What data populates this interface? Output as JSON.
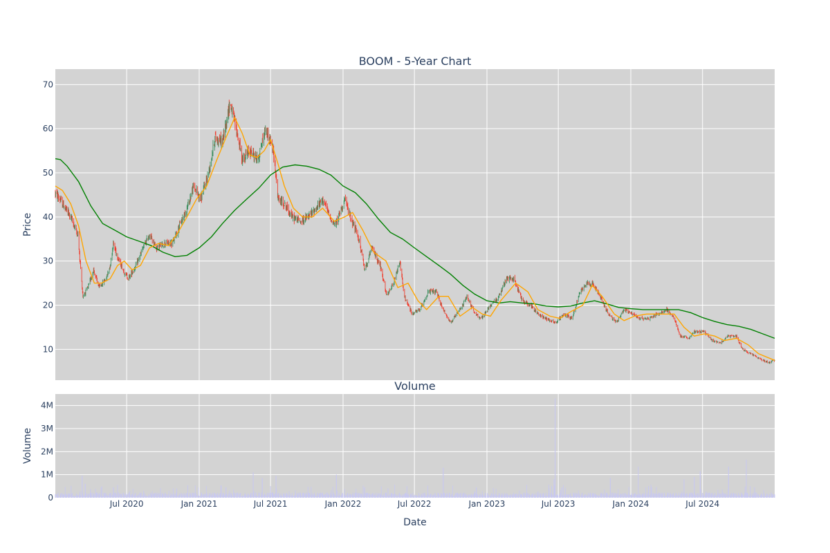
{
  "chart_data": [
    {
      "type": "candlestick",
      "title": "BOOM - 5-Year Chart",
      "ylabel": "Price",
      "xlabel": "",
      "x_range": [
        "2020-01-02",
        "2024-12-31"
      ],
      "ylim": [
        3,
        73.5
      ],
      "y_ticks": [
        10,
        20,
        30,
        40,
        50,
        60,
        70
      ],
      "grid": true,
      "colors": {
        "background": "#d3d3d3",
        "grid": "#ffffff",
        "up": "#3d8f5f",
        "down": "#ef3b2c",
        "ma_short": "#ffa500",
        "ma_long": "#008000"
      },
      "price_anchors": [
        [
          "2020-01-02",
          45.5
        ],
        [
          "2020-01-20",
          43
        ],
        [
          "2020-02-10",
          40
        ],
        [
          "2020-02-28",
          36
        ],
        [
          "2020-03-12",
          22
        ],
        [
          "2020-03-25",
          24
        ],
        [
          "2020-04-08",
          28
        ],
        [
          "2020-04-22",
          24
        ],
        [
          "2020-05-10",
          26
        ],
        [
          "2020-05-20",
          29
        ],
        [
          "2020-05-28",
          34
        ],
        [
          "2020-06-08",
          31
        ],
        [
          "2020-06-22",
          28
        ],
        [
          "2020-07-05",
          26
        ],
        [
          "2020-07-25",
          29
        ],
        [
          "2020-08-12",
          33
        ],
        [
          "2020-08-28",
          36
        ],
        [
          "2020-09-15",
          33
        ],
        [
          "2020-10-05",
          34
        ],
        [
          "2020-10-25",
          34
        ],
        [
          "2020-11-12",
          38
        ],
        [
          "2020-12-01",
          42
        ],
        [
          "2020-12-18",
          47
        ],
        [
          "2021-01-05",
          44
        ],
        [
          "2021-01-25",
          50
        ],
        [
          "2021-02-10",
          58
        ],
        [
          "2021-03-01",
          57
        ],
        [
          "2021-03-20",
          66
        ],
        [
          "2021-04-05",
          60
        ],
        [
          "2021-04-20",
          53
        ],
        [
          "2021-05-10",
          55
        ],
        [
          "2021-05-30",
          53
        ],
        [
          "2021-06-18",
          60
        ],
        [
          "2021-07-01",
          57
        ],
        [
          "2021-07-10",
          54
        ],
        [
          "2021-07-20",
          44
        ],
        [
          "2021-08-05",
          43
        ],
        [
          "2021-08-25",
          40
        ],
        [
          "2021-09-15",
          39
        ],
        [
          "2021-10-05",
          40
        ],
        [
          "2021-10-25",
          42
        ],
        [
          "2021-11-12",
          44
        ],
        [
          "2021-11-28",
          40
        ],
        [
          "2021-12-12",
          38
        ],
        [
          "2022-01-05",
          44
        ],
        [
          "2022-01-20",
          40
        ],
        [
          "2022-02-10",
          35
        ],
        [
          "2022-02-25",
          28
        ],
        [
          "2022-03-15",
          33
        ],
        [
          "2022-04-05",
          29
        ],
        [
          "2022-04-22",
          22
        ],
        [
          "2022-05-10",
          25
        ],
        [
          "2022-05-25",
          30
        ],
        [
          "2022-06-05",
          22
        ],
        [
          "2022-06-25",
          18
        ],
        [
          "2022-07-15",
          19
        ],
        [
          "2022-08-05",
          23
        ],
        [
          "2022-08-25",
          23
        ],
        [
          "2022-09-12",
          19
        ],
        [
          "2022-10-01",
          16
        ],
        [
          "2022-10-25",
          19
        ],
        [
          "2022-11-12",
          22
        ],
        [
          "2022-12-01",
          18
        ],
        [
          "2022-12-20",
          17
        ],
        [
          "2023-01-10",
          20
        ],
        [
          "2023-02-01",
          22
        ],
        [
          "2023-02-20",
          26
        ],
        [
          "2023-03-10",
          26
        ],
        [
          "2023-04-01",
          21
        ],
        [
          "2023-04-22",
          20
        ],
        [
          "2023-05-10",
          18
        ],
        [
          "2023-06-01",
          17
        ],
        [
          "2023-06-25",
          16
        ],
        [
          "2023-07-15",
          18
        ],
        [
          "2023-08-05",
          17
        ],
        [
          "2023-08-25",
          23
        ],
        [
          "2023-09-10",
          25
        ],
        [
          "2023-09-25",
          25
        ],
        [
          "2023-10-15",
          22
        ],
        [
          "2023-11-05",
          18
        ],
        [
          "2023-11-25",
          16
        ],
        [
          "2023-12-15",
          19
        ],
        [
          "2024-01-05",
          18
        ],
        [
          "2024-01-25",
          17
        ],
        [
          "2024-02-15",
          17
        ],
        [
          "2024-03-10",
          18
        ],
        [
          "2024-04-01",
          19
        ],
        [
          "2024-04-20",
          17
        ],
        [
          "2024-05-05",
          13
        ],
        [
          "2024-05-28",
          12.5
        ],
        [
          "2024-06-10",
          14
        ],
        [
          "2024-07-05",
          14
        ],
        [
          "2024-07-25",
          12
        ],
        [
          "2024-08-15",
          11.5
        ],
        [
          "2024-09-05",
          13
        ],
        [
          "2024-09-25",
          13
        ],
        [
          "2024-10-10",
          10
        ],
        [
          "2024-11-01",
          9
        ],
        [
          "2024-11-20",
          8
        ],
        [
          "2024-12-15",
          7
        ],
        [
          "2024-12-31",
          7.5
        ]
      ],
      "sma_short_anchors": [
        [
          "2020-01-02",
          47
        ],
        [
          "2020-01-20",
          46
        ],
        [
          "2020-02-10",
          43
        ],
        [
          "2020-03-01",
          38
        ],
        [
          "2020-03-20",
          30
        ],
        [
          "2020-04-10",
          25
        ],
        [
          "2020-04-28",
          25
        ],
        [
          "2020-05-20",
          26
        ],
        [
          "2020-06-08",
          29
        ],
        [
          "2020-06-25",
          30
        ],
        [
          "2020-07-15",
          28
        ],
        [
          "2020-08-05",
          29
        ],
        [
          "2020-08-28",
          33
        ],
        [
          "2020-09-20",
          34
        ],
        [
          "2020-10-15",
          33.5
        ],
        [
          "2020-11-05",
          36
        ],
        [
          "2020-12-01",
          40
        ],
        [
          "2020-12-25",
          44
        ],
        [
          "2021-01-20",
          47
        ],
        [
          "2021-02-15",
          53
        ],
        [
          "2021-03-10",
          58
        ],
        [
          "2021-04-01",
          62.5
        ],
        [
          "2021-04-20",
          59
        ],
        [
          "2021-05-10",
          54
        ],
        [
          "2021-05-28",
          53.5
        ],
        [
          "2021-06-15",
          55
        ],
        [
          "2021-07-01",
          57.5
        ],
        [
          "2021-07-20",
          52
        ],
        [
          "2021-08-05",
          47
        ],
        [
          "2021-08-28",
          42
        ],
        [
          "2021-09-20",
          40
        ],
        [
          "2021-10-15",
          40
        ],
        [
          "2021-11-10",
          42
        ],
        [
          "2021-12-10",
          39
        ],
        [
          "2022-01-05",
          40
        ],
        [
          "2022-01-25",
          41
        ],
        [
          "2022-02-20",
          37
        ],
        [
          "2022-03-20",
          32
        ],
        [
          "2022-04-20",
          30
        ],
        [
          "2022-05-20",
          24
        ],
        [
          "2022-06-15",
          25
        ],
        [
          "2022-07-10",
          21
        ],
        [
          "2022-08-01",
          19
        ],
        [
          "2022-09-01",
          22
        ],
        [
          "2022-09-25",
          22
        ],
        [
          "2022-10-25",
          17.5
        ],
        [
          "2022-11-25",
          19.5
        ],
        [
          "2022-12-20",
          18
        ],
        [
          "2023-01-10",
          17.5
        ],
        [
          "2023-02-05",
          21
        ],
        [
          "2023-03-15",
          25
        ],
        [
          "2023-04-15",
          23
        ],
        [
          "2023-05-10",
          19
        ],
        [
          "2023-06-10",
          17.5
        ],
        [
          "2023-07-05",
          17
        ],
        [
          "2023-08-01",
          18.5
        ],
        [
          "2023-09-01",
          20
        ],
        [
          "2023-09-25",
          24.5
        ],
        [
          "2023-10-20",
          22
        ],
        [
          "2023-11-20",
          18
        ],
        [
          "2023-12-15",
          16.5
        ],
        [
          "2024-01-10",
          17.5
        ],
        [
          "2024-02-10",
          18
        ],
        [
          "2024-03-15",
          18
        ],
        [
          "2024-04-20",
          18
        ],
        [
          "2024-05-15",
          15
        ],
        [
          "2024-06-10",
          13
        ],
        [
          "2024-07-05",
          13.5
        ],
        [
          "2024-08-01",
          13
        ],
        [
          "2024-08-25",
          12
        ],
        [
          "2024-09-25",
          12.5
        ],
        [
          "2024-10-25",
          11
        ],
        [
          "2024-11-20",
          9
        ],
        [
          "2024-12-31",
          7.5
        ]
      ],
      "sma_long_anchors": [
        [
          "2020-01-02",
          53.2
        ],
        [
          "2020-01-15",
          53
        ],
        [
          "2020-02-01",
          51.5
        ],
        [
          "2020-03-01",
          48
        ],
        [
          "2020-04-01",
          42.5
        ],
        [
          "2020-05-01",
          38.5
        ],
        [
          "2020-06-01",
          37
        ],
        [
          "2020-07-01",
          35.5
        ],
        [
          "2020-08-01",
          34.5
        ],
        [
          "2020-09-01",
          33.5
        ],
        [
          "2020-10-01",
          32
        ],
        [
          "2020-11-01",
          31
        ],
        [
          "2020-12-01",
          31.3
        ],
        [
          "2021-01-01",
          33
        ],
        [
          "2021-02-01",
          35.5
        ],
        [
          "2021-03-01",
          38.5
        ],
        [
          "2021-04-01",
          41.5
        ],
        [
          "2021-05-01",
          44
        ],
        [
          "2021-06-01",
          46.5
        ],
        [
          "2021-07-01",
          49.5
        ],
        [
          "2021-08-01",
          51.3
        ],
        [
          "2021-09-01",
          51.8
        ],
        [
          "2021-10-01",
          51.5
        ],
        [
          "2021-11-01",
          50.8
        ],
        [
          "2021-12-01",
          49.5
        ],
        [
          "2022-01-01",
          47
        ],
        [
          "2022-02-01",
          45.5
        ],
        [
          "2022-03-01",
          43
        ],
        [
          "2022-04-01",
          39.5
        ],
        [
          "2022-05-01",
          36.5
        ],
        [
          "2022-06-01",
          35
        ],
        [
          "2022-07-01",
          33
        ],
        [
          "2022-08-01",
          31
        ],
        [
          "2022-09-01",
          29
        ],
        [
          "2022-10-01",
          27
        ],
        [
          "2022-11-01",
          24.5
        ],
        [
          "2022-12-01",
          22.5
        ],
        [
          "2023-01-01",
          21
        ],
        [
          "2023-02-01",
          20.5
        ],
        [
          "2023-03-01",
          20.8
        ],
        [
          "2023-04-01",
          20.5
        ],
        [
          "2023-05-01",
          20.3
        ],
        [
          "2023-06-01",
          19.8
        ],
        [
          "2023-07-01",
          19.6
        ],
        [
          "2023-08-01",
          19.8
        ],
        [
          "2023-09-01",
          20.5
        ],
        [
          "2023-10-01",
          21
        ],
        [
          "2023-11-01",
          20.3
        ],
        [
          "2023-12-01",
          19.5
        ],
        [
          "2024-01-01",
          19.2
        ],
        [
          "2024-02-01",
          19
        ],
        [
          "2024-03-01",
          19
        ],
        [
          "2024-04-01",
          19
        ],
        [
          "2024-05-01",
          19
        ],
        [
          "2024-06-01",
          18.3
        ],
        [
          "2024-07-01",
          17.2
        ],
        [
          "2024-08-01",
          16.3
        ],
        [
          "2024-09-01",
          15.6
        ],
        [
          "2024-10-01",
          15.2
        ],
        [
          "2024-11-01",
          14.5
        ],
        [
          "2024-12-01",
          13.5
        ],
        [
          "2024-12-31",
          12.5
        ]
      ]
    },
    {
      "type": "bar",
      "title": "Volume",
      "ylabel": "Volume",
      "xlabel": "Date",
      "x_range": [
        "2020-01-02",
        "2024-12-31"
      ],
      "ylim": [
        0,
        4500000
      ],
      "y_ticks": [
        0,
        1000000,
        2000000,
        3000000,
        4000000
      ],
      "y_tick_labels": [
        "0",
        "1M",
        "2M",
        "3M",
        "4M"
      ],
      "x_ticks": [
        "2020-07-01",
        "2021-01-01",
        "2021-07-01",
        "2022-01-01",
        "2022-07-01",
        "2023-01-01",
        "2023-07-01",
        "2024-01-01",
        "2024-07-01"
      ],
      "x_tick_labels": [
        "Jul 2020",
        "Jan 2021",
        "Jul 2021",
        "Jan 2022",
        "Jul 2022",
        "Jan 2023",
        "Jul 2023",
        "Jan 2024",
        "Jul 2024"
      ],
      "grid": true,
      "colors": {
        "background": "#d3d3d3",
        "grid": "#ffffff",
        "bar": "#c8c8f0"
      },
      "baseline_volume": 150000,
      "volume_spikes": [
        [
          "2020-03-10",
          950000
        ],
        [
          "2020-03-18",
          600000
        ],
        [
          "2020-05-28",
          450000
        ],
        [
          "2020-11-05",
          400000
        ],
        [
          "2021-03-10",
          450000
        ],
        [
          "2021-05-18",
          1100000
        ],
        [
          "2021-06-10",
          850000
        ],
        [
          "2021-07-15",
          950000
        ],
        [
          "2021-12-15",
          1000000
        ],
        [
          "2022-02-25",
          450000
        ],
        [
          "2022-04-25",
          400000
        ],
        [
          "2022-06-12",
          500000
        ],
        [
          "2022-09-12",
          1300000
        ],
        [
          "2022-12-05",
          450000
        ],
        [
          "2023-06-20",
          800000
        ],
        [
          "2023-06-23",
          4300000
        ],
        [
          "2023-07-10",
          450000
        ],
        [
          "2023-11-10",
          850000
        ],
        [
          "2024-01-20",
          1350000
        ],
        [
          "2024-02-15",
          500000
        ],
        [
          "2024-05-15",
          800000
        ],
        [
          "2024-06-10",
          900000
        ],
        [
          "2024-06-25",
          1150000
        ],
        [
          "2024-09-05",
          1350000
        ],
        [
          "2024-10-20",
          1650000
        ],
        [
          "2024-11-10",
          450000
        ]
      ]
    }
  ]
}
